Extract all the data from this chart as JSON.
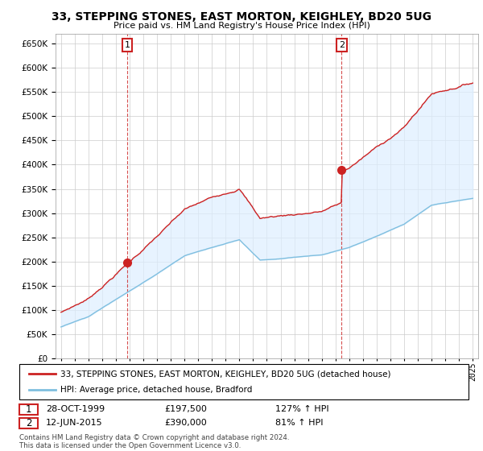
{
  "title": "33, STEPPING STONES, EAST MORTON, KEIGHLEY, BD20 5UG",
  "subtitle": "Price paid vs. HM Land Registry's House Price Index (HPI)",
  "legend_line1": "33, STEPPING STONES, EAST MORTON, KEIGHLEY, BD20 5UG (detached house)",
  "legend_line2": "HPI: Average price, detached house, Bradford",
  "annotation1_label": "1",
  "annotation1_date": "28-OCT-1999",
  "annotation1_price": "£197,500",
  "annotation1_hpi": "127% ↑ HPI",
  "annotation2_label": "2",
  "annotation2_date": "12-JUN-2015",
  "annotation2_price": "£390,000",
  "annotation2_hpi": "81% ↑ HPI",
  "copyright": "Contains HM Land Registry data © Crown copyright and database right 2024.\nThis data is licensed under the Open Government Licence v3.0.",
  "hpi_color": "#7fbfdf",
  "price_color": "#cc2222",
  "fill_color": "#ddeeff",
  "sale1_x": 1999.82,
  "sale1_y": 197500,
  "sale2_x": 2015.45,
  "sale2_y": 390000,
  "ylim": [
    0,
    670000
  ],
  "xlim_start": 1994.6,
  "xlim_end": 2025.4,
  "background_color": "#ffffff",
  "grid_color": "#cccccc"
}
